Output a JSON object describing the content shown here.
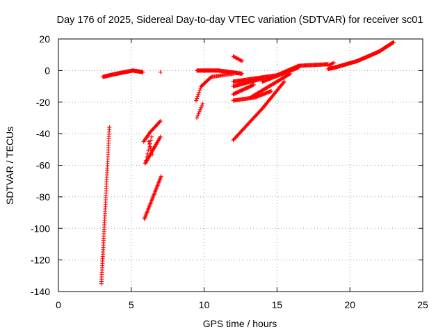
{
  "chart_data": {
    "type": "scatter",
    "title": "Day 176 of 2025, Sidereal Day-to-day VTEC variation (SDTVAR) for receiver sc01",
    "xlabel": "GPS time / hours",
    "ylabel": "SDTVAR / TECUs",
    "xlim": [
      0,
      25
    ],
    "ylim": [
      -140,
      20
    ],
    "xticks": [
      0,
      5,
      10,
      15,
      20,
      25
    ],
    "yticks": [
      -140,
      -120,
      -100,
      -80,
      -60,
      -40,
      -20,
      0,
      20
    ],
    "grid": true,
    "marker": "+",
    "color": "#ff0000",
    "segments": [
      {
        "name": "early-steep-rise",
        "from": [
          2.95,
          -135
        ],
        "to": [
          3.5,
          -36
        ],
        "n": 70
      },
      {
        "name": "early-flat-a",
        "from": [
          3.05,
          -4
        ],
        "to": [
          4.0,
          -2
        ],
        "n": 28
      },
      {
        "name": "early-flat-b",
        "from": [
          4.0,
          -2
        ],
        "to": [
          5.1,
          0
        ],
        "n": 34
      },
      {
        "name": "early-flat-c",
        "from": [
          5.1,
          0
        ],
        "to": [
          5.8,
          -1
        ],
        "n": 24
      },
      {
        "name": "isolated-point",
        "from": [
          7.0,
          -1
        ],
        "to": [
          7.0,
          -1
        ],
        "n": 1
      },
      {
        "name": "mid-upper-arc-a",
        "from": [
          5.85,
          -45
        ],
        "to": [
          6.3,
          -39
        ],
        "n": 10
      },
      {
        "name": "mid-upper-arc-b",
        "from": [
          6.3,
          -39
        ],
        "to": [
          7.0,
          -32
        ],
        "n": 14
      },
      {
        "name": "mid-lower-band",
        "from": [
          5.95,
          -59
        ],
        "to": [
          7.0,
          -42
        ],
        "n": 26
      },
      {
        "name": "mid-connector",
        "from": [
          6.0,
          -57
        ],
        "to": [
          6.4,
          -42
        ],
        "n": 8
      },
      {
        "name": "mid-dip",
        "from": [
          6.2,
          -45
        ],
        "to": [
          6.45,
          -53
        ],
        "n": 6
      },
      {
        "name": "mid-low-rise",
        "from": [
          5.9,
          -94
        ],
        "to": [
          7.05,
          -67
        ],
        "n": 34
      },
      {
        "name": "late-bottom-short",
        "from": [
          9.5,
          -30
        ],
        "to": [
          9.9,
          -21
        ],
        "n": 8
      },
      {
        "name": "late-curve-a",
        "from": [
          9.45,
          -19
        ],
        "to": [
          9.8,
          -10
        ],
        "n": 8
      },
      {
        "name": "late-curve-b",
        "from": [
          9.8,
          -10
        ],
        "to": [
          10.5,
          -4
        ],
        "n": 14
      },
      {
        "name": "late-curve-c",
        "from": [
          10.5,
          -4
        ],
        "to": [
          12.0,
          -2
        ],
        "n": 22
      },
      {
        "name": "late-flat-a",
        "from": [
          9.5,
          0
        ],
        "to": [
          11.0,
          0
        ],
        "n": 40
      },
      {
        "name": "late-flat-b",
        "from": [
          11.0,
          0
        ],
        "to": [
          12.6,
          -2
        ],
        "n": 40
      },
      {
        "name": "late-upper-spur",
        "from": [
          12.0,
          9
        ],
        "to": [
          12.6,
          6
        ],
        "n": 10
      },
      {
        "name": "late-band-1",
        "from": [
          12.0,
          -7
        ],
        "to": [
          15.0,
          -3
        ],
        "n": 60
      },
      {
        "name": "late-band-2",
        "from": [
          12.0,
          -10
        ],
        "to": [
          14.0,
          -5
        ],
        "n": 40
      },
      {
        "name": "late-band-3",
        "from": [
          12.0,
          -15
        ],
        "to": [
          13.4,
          -9
        ],
        "n": 28
      },
      {
        "name": "late-band-4",
        "from": [
          12.0,
          -19
        ],
        "to": [
          13.5,
          -17
        ],
        "n": 28
      },
      {
        "name": "late-band-4b",
        "from": [
          13.5,
          -17
        ],
        "to": [
          14.6,
          -13
        ],
        "n": 20
      },
      {
        "name": "late-long-rise-a",
        "from": [
          12.0,
          -44
        ],
        "to": [
          14.0,
          -24
        ],
        "n": 36
      },
      {
        "name": "late-long-rise-b",
        "from": [
          14.0,
          -24
        ],
        "to": [
          15.5,
          -7
        ],
        "n": 28
      },
      {
        "name": "late-diag-2",
        "from": [
          13.2,
          -17
        ],
        "to": [
          15.9,
          -2
        ],
        "n": 48
      },
      {
        "name": "late-diag-3",
        "from": [
          14.0,
          -7
        ],
        "to": [
          16.5,
          2
        ],
        "n": 48
      },
      {
        "name": "tail-a",
        "from": [
          15.0,
          -3
        ],
        "to": [
          16.5,
          3
        ],
        "n": 40
      },
      {
        "name": "tail-b",
        "from": [
          16.5,
          3
        ],
        "to": [
          18.5,
          4
        ],
        "n": 40
      },
      {
        "name": "tail-hump-up",
        "from": [
          18.5,
          3
        ],
        "to": [
          18.9,
          5
        ],
        "n": 6
      },
      {
        "name": "tail-c",
        "from": [
          18.5,
          1
        ],
        "to": [
          19.0,
          2
        ],
        "n": 14
      },
      {
        "name": "tail-d",
        "from": [
          19.0,
          2
        ],
        "to": [
          20.5,
          6
        ],
        "n": 40
      },
      {
        "name": "tail-e",
        "from": [
          20.5,
          6
        ],
        "to": [
          22.0,
          12
        ],
        "n": 44
      },
      {
        "name": "tail-f",
        "from": [
          22.0,
          12
        ],
        "to": [
          23.0,
          18
        ],
        "n": 30
      }
    ]
  }
}
